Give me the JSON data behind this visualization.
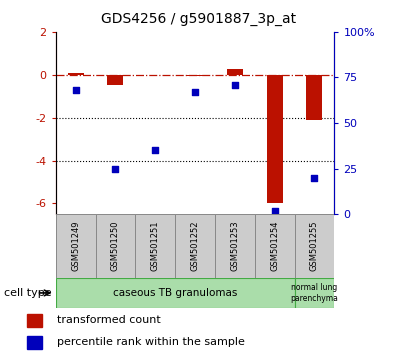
{
  "title": "GDS4256 / g5901887_3p_at",
  "samples": [
    "GSM501249",
    "GSM501250",
    "GSM501251",
    "GSM501252",
    "GSM501253",
    "GSM501254",
    "GSM501255"
  ],
  "transformed_count": [
    0.1,
    -0.5,
    0.0,
    -0.05,
    0.25,
    -6.0,
    -2.1
  ],
  "percentile_rank_raw": [
    68,
    25,
    35,
    67,
    71,
    2,
    20
  ],
  "ylim_left": [
    -6.5,
    2.0
  ],
  "ylim_right": [
    0,
    100
  ],
  "yticks_left": [
    2,
    0,
    -2,
    -4,
    -6
  ],
  "ytick_labels_right": [
    "100%",
    "75",
    "50",
    "25",
    "0"
  ],
  "yticks_right": [
    100,
    75,
    50,
    25,
    0
  ],
  "dotted_lines": [
    -2,
    -4
  ],
  "bar_color": "#bb1100",
  "scatter_color": "#0000bb",
  "cell_groups": [
    {
      "label": "caseous TB granulomas",
      "start": 0,
      "end": 5,
      "color": "#99ee99"
    },
    {
      "label": "normal lung\nparenchyma",
      "start": 6,
      "end": 6,
      "color": "#99ee99"
    }
  ],
  "cell_type_label": "cell type",
  "legend_items": [
    {
      "color": "#bb1100",
      "label": "transformed count"
    },
    {
      "color": "#0000bb",
      "label": "percentile rank within the sample"
    }
  ],
  "bar_width": 0.4,
  "title_fontsize": 10,
  "tick_fontsize": 8,
  "sample_fontsize": 6,
  "cell_fontsize": 7.5,
  "legend_fontsize": 8
}
